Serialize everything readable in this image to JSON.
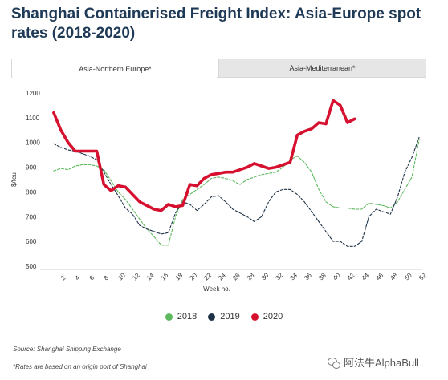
{
  "title": "Shanghai Containerised Freight Index: Asia-Europe spot rates (2018-2020)",
  "tabs": [
    {
      "label": "Asia-Northern Europe*",
      "active": true
    },
    {
      "label": "Asia-Mediterranean*",
      "active": false
    }
  ],
  "colors": {
    "2018": "#5cb85c",
    "2019": "#1e3246",
    "2020": "#d6102f",
    "title": "#1f3a56"
  },
  "chart_data": {
    "type": "line",
    "xlabel": "Week no.",
    "ylabel": "$/feu",
    "xlim": [
      0,
      52
    ],
    "ylim": [
      500,
      1200
    ],
    "yticks": [
      500,
      600,
      700,
      800,
      900,
      1000,
      1100,
      1200
    ],
    "xticks": [
      2,
      4,
      6,
      8,
      10,
      12,
      14,
      16,
      18,
      20,
      22,
      24,
      26,
      28,
      30,
      32,
      34,
      36,
      38,
      40,
      42,
      44,
      46,
      48,
      50,
      52
    ],
    "series": [
      {
        "name": "2018",
        "style": "dashed",
        "x": [
          1,
          2,
          3,
          4,
          5,
          6,
          7,
          8,
          9,
          10,
          11,
          12,
          13,
          14,
          15,
          16,
          17,
          18,
          19,
          20,
          21,
          22,
          23,
          24,
          25,
          26,
          27,
          28,
          29,
          30,
          31,
          32,
          33,
          34,
          35,
          36,
          37,
          38,
          39,
          40,
          41,
          42,
          43,
          44,
          45,
          46,
          47,
          48,
          49,
          50,
          51,
          52
        ],
        "y": [
          885,
          895,
          890,
          905,
          910,
          910,
          905,
          890,
          845,
          800,
          770,
          730,
          690,
          650,
          620,
          585,
          585,
          700,
          770,
          790,
          810,
          830,
          855,
          860,
          855,
          845,
          830,
          850,
          860,
          870,
          875,
          880,
          900,
          930,
          945,
          920,
          880,
          810,
          760,
          740,
          735,
          735,
          730,
          730,
          755,
          750,
          745,
          735,
          760,
          810,
          860,
          1010
        ]
      },
      {
        "name": "2019",
        "style": "dashed",
        "x": [
          1,
          2,
          3,
          4,
          5,
          6,
          7,
          8,
          9,
          10,
          11,
          12,
          13,
          14,
          15,
          16,
          17,
          18,
          19,
          20,
          21,
          22,
          23,
          24,
          25,
          26,
          27,
          28,
          29,
          30,
          31,
          32,
          33,
          34,
          35,
          36,
          37,
          38,
          39,
          40,
          41,
          42,
          43,
          44,
          45,
          46,
          47,
          48,
          49,
          50,
          51,
          52
        ],
        "y": [
          995,
          980,
          970,
          965,
          955,
          945,
          930,
          880,
          830,
          785,
          735,
          710,
          665,
          650,
          640,
          630,
          635,
          715,
          760,
          750,
          725,
          750,
          780,
          785,
          760,
          730,
          715,
          700,
          680,
          700,
          760,
          800,
          810,
          810,
          790,
          760,
          720,
          680,
          640,
          600,
          600,
          580,
          580,
          600,
          700,
          730,
          720,
          710,
          780,
          880,
          940,
          1020
        ]
      },
      {
        "name": "2020",
        "style": "solid",
        "x": [
          1,
          2,
          3,
          4,
          5,
          6,
          7,
          8,
          9,
          10,
          11,
          12,
          13,
          14,
          15,
          16,
          17,
          18,
          19,
          20,
          21,
          22,
          23,
          24,
          25,
          26,
          27,
          28,
          29,
          30,
          31,
          32,
          33,
          34,
          35,
          36,
          37,
          38,
          39,
          40,
          41,
          42,
          43
        ],
        "y": [
          1120,
          1050,
          1000,
          965,
          965,
          965,
          965,
          830,
          805,
          825,
          820,
          790,
          760,
          745,
          730,
          725,
          750,
          740,
          745,
          830,
          825,
          855,
          870,
          875,
          880,
          880,
          890,
          900,
          915,
          905,
          895,
          900,
          910,
          920,
          1030,
          1045,
          1055,
          1080,
          1075,
          1170,
          1150,
          1080,
          1095
        ]
      }
    ]
  },
  "legend": [
    {
      "label": "2018",
      "color": "#5cb85c"
    },
    {
      "label": "2019",
      "color": "#1e3246"
    },
    {
      "label": "2020",
      "color": "#d6102f"
    }
  ],
  "source": "Source: Shanghai Shipping Exchange",
  "note": "*Rates are based on an origin port of Shanghai",
  "watermark": "阿法牛AlphaBull"
}
